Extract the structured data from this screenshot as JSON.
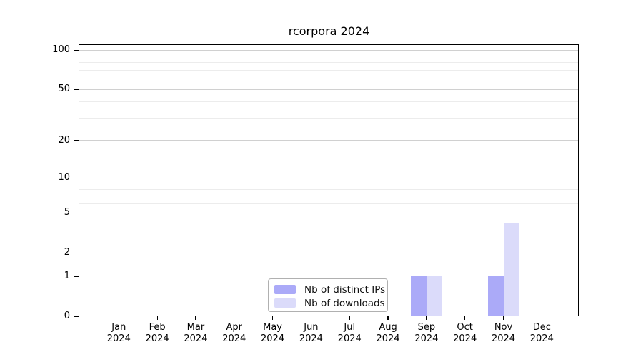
{
  "chart_data": {
    "type": "bar",
    "title": "rcorpora 2024",
    "categories": [
      "Jan 2024",
      "Feb 2024",
      "Mar 2024",
      "Apr 2024",
      "May 2024",
      "Jun 2024",
      "Jul 2024",
      "Aug 2024",
      "Sep 2024",
      "Oct 2024",
      "Nov 2024",
      "Dec 2024"
    ],
    "series": [
      {
        "name": "Nb of distinct IPs",
        "color": "#abaaf8",
        "values": [
          0,
          0,
          0,
          0,
          0,
          0,
          0,
          0,
          1,
          0,
          1,
          0
        ]
      },
      {
        "name": "Nb of downloads",
        "color": "#dbdbfa",
        "values": [
          0,
          0,
          0,
          0,
          0,
          0,
          0,
          0,
          1,
          0,
          4,
          0
        ]
      }
    ],
    "yscale": "log1p",
    "ylim": [
      0,
      100
    ],
    "y_major_ticks": [
      0,
      1,
      2,
      5,
      10,
      20,
      50,
      100
    ],
    "y_minor_gridlines": [
      0.5,
      3,
      4,
      6,
      7,
      8,
      9,
      15,
      30,
      40,
      60,
      70,
      80,
      90
    ],
    "xlabel": "",
    "ylabel": "",
    "grid": "horizontal",
    "legend_position": "lower center"
  },
  "colors": {
    "axis": "#000000",
    "grid_major": "#d0d0d0",
    "grid_minor": "#ececec",
    "background": "#ffffff",
    "legend_border": "#b0b0b0"
  }
}
